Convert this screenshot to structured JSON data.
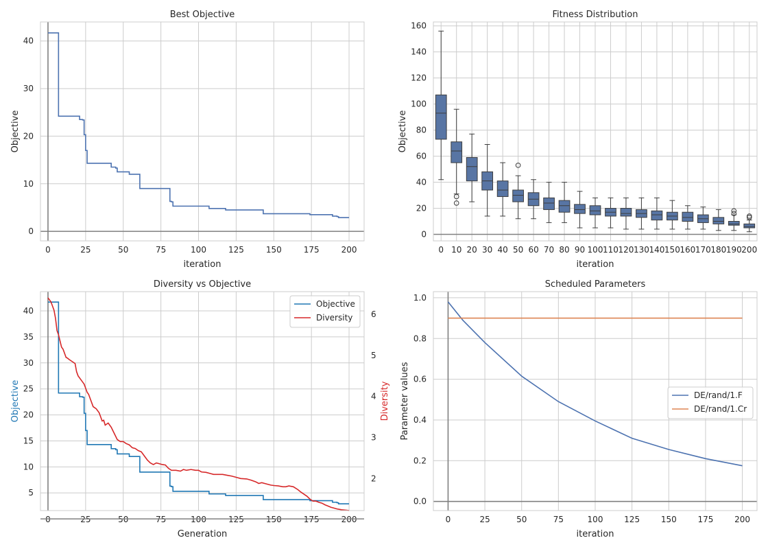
{
  "colors": {
    "blue": "#4c72b0",
    "box_fill": "#5875a4",
    "div_blue": "#1f77b4",
    "div_red": "#d62728",
    "orange": "#dd8452",
    "grid": "#cccccc",
    "zero": "#808080"
  },
  "chart_data": [
    {
      "id": "best",
      "type": "line",
      "title": "Best Objective",
      "xlabel": "iteration",
      "ylabel": "Objective",
      "xlim": [
        -5,
        210
      ],
      "ylim": [
        -2,
        44
      ],
      "xticks": [
        0,
        25,
        50,
        75,
        100,
        125,
        150,
        175,
        200
      ],
      "yticks": [
        0,
        10,
        20,
        30,
        40
      ],
      "grid": true,
      "series": [
        {
          "step": [
            [
              0,
              41.7
            ],
            [
              6,
              41.7
            ],
            [
              7,
              24.2
            ],
            [
              20,
              24.2
            ],
            [
              21,
              23.5
            ],
            [
              23,
              23.4
            ],
            [
              24,
              20.3
            ],
            [
              25,
              17.0
            ],
            [
              26,
              14.3
            ],
            [
              41,
              14.3
            ],
            [
              42,
              13.5
            ],
            [
              45,
              13.3
            ],
            [
              46,
              12.5
            ],
            [
              53,
              12.5
            ],
            [
              54,
              12.0
            ],
            [
              60,
              12.0
            ],
            [
              61,
              9.0
            ],
            [
              80,
              9.0
            ],
            [
              81,
              6.3
            ],
            [
              82,
              6.2
            ],
            [
              83,
              5.3
            ],
            [
              106,
              5.3
            ],
            [
              107,
              4.8
            ],
            [
              117,
              4.8
            ],
            [
              118,
              4.5
            ],
            [
              142,
              4.5
            ],
            [
              143,
              3.7
            ],
            [
              173,
              3.7
            ],
            [
              174,
              3.5
            ],
            [
              188,
              3.5
            ],
            [
              189,
              3.2
            ],
            [
              192,
              3.1
            ],
            [
              193,
              2.9
            ],
            [
              200,
              2.9
            ]
          ]
        }
      ]
    },
    {
      "id": "fitness",
      "type": "box",
      "title": "Fitness Distribution",
      "xlabel": "iteration",
      "ylabel": "Objective",
      "ylim": [
        -5,
        163
      ],
      "yticks": [
        0,
        20,
        40,
        60,
        80,
        100,
        120,
        140,
        160
      ],
      "categories": [
        "0",
        "10",
        "20",
        "30",
        "40",
        "50",
        "60",
        "70",
        "80",
        "90",
        "100",
        "110",
        "120",
        "130",
        "140",
        "150",
        "160",
        "170",
        "180",
        "190",
        "200"
      ],
      "boxes": [
        {
          "whislo": 42,
          "q1": 73,
          "med": 93,
          "q3": 107,
          "whishi": 156,
          "fliers": []
        },
        {
          "whislo": 31,
          "q1": 55,
          "med": 64,
          "q3": 71,
          "whishi": 96,
          "fliers": [
            29,
            24
          ]
        },
        {
          "whislo": 25,
          "q1": 41,
          "med": 52,
          "q3": 59,
          "whishi": 77,
          "fliers": []
        },
        {
          "whislo": 14,
          "q1": 34,
          "med": 41,
          "q3": 48,
          "whishi": 69,
          "fliers": []
        },
        {
          "whislo": 14,
          "q1": 29,
          "med": 34,
          "q3": 41,
          "whishi": 55,
          "fliers": []
        },
        {
          "whislo": 12,
          "q1": 25,
          "med": 30,
          "q3": 34,
          "whishi": 45,
          "fliers": [
            53
          ]
        },
        {
          "whislo": 12,
          "q1": 22,
          "med": 27,
          "q3": 32,
          "whishi": 42,
          "fliers": []
        },
        {
          "whislo": 9,
          "q1": 19,
          "med": 24,
          "q3": 28,
          "whishi": 40,
          "fliers": []
        },
        {
          "whislo": 9,
          "q1": 17,
          "med": 22,
          "q3": 26,
          "whishi": 40,
          "fliers": []
        },
        {
          "whislo": 5,
          "q1": 16,
          "med": 19,
          "q3": 23,
          "whishi": 33,
          "fliers": []
        },
        {
          "whislo": 5,
          "q1": 15,
          "med": 18,
          "q3": 22,
          "whishi": 28,
          "fliers": []
        },
        {
          "whislo": 5,
          "q1": 14,
          "med": 17,
          "q3": 20,
          "whishi": 28,
          "fliers": []
        },
        {
          "whislo": 4,
          "q1": 14,
          "med": 16,
          "q3": 20,
          "whishi": 28,
          "fliers": []
        },
        {
          "whislo": 4,
          "q1": 13,
          "med": 16,
          "q3": 19,
          "whishi": 28,
          "fliers": []
        },
        {
          "whislo": 4,
          "q1": 11,
          "med": 15,
          "q3": 18,
          "whishi": 28,
          "fliers": []
        },
        {
          "whislo": 4,
          "q1": 11,
          "med": 14,
          "q3": 17,
          "whishi": 26,
          "fliers": []
        },
        {
          "whislo": 4,
          "q1": 10,
          "med": 13,
          "q3": 17,
          "whishi": 22,
          "fliers": []
        },
        {
          "whislo": 4,
          "q1": 9,
          "med": 12,
          "q3": 15,
          "whishi": 21,
          "fliers": []
        },
        {
          "whislo": 3,
          "q1": 8,
          "med": 10,
          "q3": 13,
          "whishi": 19,
          "fliers": []
        },
        {
          "whislo": 3,
          "q1": 7,
          "med": 8,
          "q3": 10,
          "whishi": 15,
          "fliers": [
            16,
            18
          ]
        },
        {
          "whislo": 2,
          "q1": 5,
          "med": 6,
          "q3": 8,
          "whishi": 11,
          "fliers": [
            13,
            14
          ]
        }
      ]
    },
    {
      "id": "diversity",
      "type": "line",
      "title": "Diversity vs Objective",
      "xlabel": "Generation",
      "ylabel": "Objective",
      "ylabel2": "Diversity",
      "xlim": [
        -5,
        210
      ],
      "ylim": [
        1.6,
        43.7
      ],
      "ylim2": [
        1.22,
        6.55
      ],
      "xticks": [
        0,
        25,
        50,
        75,
        100,
        125,
        150,
        175,
        200
      ],
      "yticks": [
        5,
        10,
        15,
        20,
        25,
        30,
        35,
        40
      ],
      "yticks2": [
        2,
        3,
        4,
        5,
        6
      ],
      "grid": true,
      "legend": "top-right",
      "series": [
        {
          "name": "Objective",
          "axis": "left",
          "step": [
            [
              0,
              41.7
            ],
            [
              6,
              41.7
            ],
            [
              7,
              24.2
            ],
            [
              20,
              24.2
            ],
            [
              21,
              23.5
            ],
            [
              23,
              23.4
            ],
            [
              24,
              20.3
            ],
            [
              25,
              17.0
            ],
            [
              26,
              14.3
            ],
            [
              41,
              14.3
            ],
            [
              42,
              13.5
            ],
            [
              45,
              13.3
            ],
            [
              46,
              12.5
            ],
            [
              53,
              12.5
            ],
            [
              54,
              12.0
            ],
            [
              60,
              12.0
            ],
            [
              61,
              9.0
            ],
            [
              80,
              9.0
            ],
            [
              81,
              6.3
            ],
            [
              82,
              6.2
            ],
            [
              83,
              5.3
            ],
            [
              106,
              5.3
            ],
            [
              107,
              4.8
            ],
            [
              117,
              4.8
            ],
            [
              118,
              4.5
            ],
            [
              142,
              4.5
            ],
            [
              143,
              3.7
            ],
            [
              173,
              3.7
            ],
            [
              174,
              3.5
            ],
            [
              188,
              3.5
            ],
            [
              189,
              3.2
            ],
            [
              192,
              3.1
            ],
            [
              193,
              2.9
            ],
            [
              200,
              2.9
            ]
          ]
        },
        {
          "name": "Diversity",
          "axis": "right",
          "points": [
            [
              0,
              6.4
            ],
            [
              2,
              6.3
            ],
            [
              4,
              6.1
            ],
            [
              5,
              5.9
            ],
            [
              6,
              5.6
            ],
            [
              7,
              5.5
            ],
            [
              8,
              5.35
            ],
            [
              9,
              5.2
            ],
            [
              10,
              5.15
            ],
            [
              11,
              5.05
            ],
            [
              12,
              4.95
            ],
            [
              13,
              4.93
            ],
            [
              14,
              4.9
            ],
            [
              16,
              4.85
            ],
            [
              18,
              4.8
            ],
            [
              19,
              4.6
            ],
            [
              20,
              4.5
            ],
            [
              22,
              4.4
            ],
            [
              23,
              4.35
            ],
            [
              24,
              4.3
            ],
            [
              25,
              4.2
            ],
            [
              26,
              4.1
            ],
            [
              27,
              4.05
            ],
            [
              28,
              3.95
            ],
            [
              30,
              3.75
            ],
            [
              32,
              3.7
            ],
            [
              34,
              3.6
            ],
            [
              36,
              3.4
            ],
            [
              37,
              3.42
            ],
            [
              38,
              3.3
            ],
            [
              40,
              3.35
            ],
            [
              42,
              3.25
            ],
            [
              44,
              3.1
            ],
            [
              46,
              2.95
            ],
            [
              48,
              2.9
            ],
            [
              50,
              2.9
            ],
            [
              52,
              2.85
            ],
            [
              54,
              2.82
            ],
            [
              56,
              2.75
            ],
            [
              58,
              2.73
            ],
            [
              60,
              2.68
            ],
            [
              62,
              2.65
            ],
            [
              64,
              2.55
            ],
            [
              66,
              2.45
            ],
            [
              68,
              2.38
            ],
            [
              70,
              2.34
            ],
            [
              72,
              2.38
            ],
            [
              74,
              2.36
            ],
            [
              76,
              2.34
            ],
            [
              78,
              2.33
            ],
            [
              80,
              2.25
            ],
            [
              82,
              2.2
            ],
            [
              85,
              2.2
            ],
            [
              88,
              2.18
            ],
            [
              90,
              2.22
            ],
            [
              92,
              2.2
            ],
            [
              95,
              2.22
            ],
            [
              98,
              2.2
            ],
            [
              100,
              2.2
            ],
            [
              102,
              2.16
            ],
            [
              105,
              2.15
            ],
            [
              108,
              2.12
            ],
            [
              110,
              2.1
            ],
            [
              113,
              2.1
            ],
            [
              116,
              2.1
            ],
            [
              119,
              2.08
            ],
            [
              122,
              2.06
            ],
            [
              125,
              2.03
            ],
            [
              128,
              2.0
            ],
            [
              132,
              1.99
            ],
            [
              135,
              1.96
            ],
            [
              138,
              1.92
            ],
            [
              140,
              1.88
            ],
            [
              142,
              1.9
            ],
            [
              145,
              1.87
            ],
            [
              148,
              1.84
            ],
            [
              150,
              1.83
            ],
            [
              153,
              1.82
            ],
            [
              156,
              1.8
            ],
            [
              158,
              1.8
            ],
            [
              160,
              1.82
            ],
            [
              163,
              1.8
            ],
            [
              166,
              1.73
            ],
            [
              168,
              1.67
            ],
            [
              170,
              1.62
            ],
            [
              172,
              1.57
            ],
            [
              174,
              1.5
            ],
            [
              176,
              1.45
            ],
            [
              178,
              1.45
            ],
            [
              180,
              1.42
            ],
            [
              182,
              1.4
            ],
            [
              184,
              1.36
            ],
            [
              186,
              1.33
            ],
            [
              188,
              1.3
            ],
            [
              190,
              1.28
            ],
            [
              192,
              1.26
            ],
            [
              195,
              1.24
            ],
            [
              198,
              1.23
            ],
            [
              200,
              1.22
            ]
          ]
        }
      ]
    },
    {
      "id": "params",
      "type": "line",
      "title": "Scheduled Parameters",
      "xlabel": "iteration",
      "ylabel": "Parameter values",
      "xlim": [
        -10,
        210
      ],
      "ylim": [
        -0.045,
        1.03
      ],
      "xticks": [
        0,
        25,
        50,
        75,
        100,
        125,
        150,
        175,
        200
      ],
      "yticks": [
        0.0,
        0.2,
        0.4,
        0.6,
        0.8,
        1.0
      ],
      "grid": true,
      "legend": "center-right",
      "series": [
        {
          "name": "DE/rand/1.F",
          "points": [
            [
              0,
              0.98
            ],
            [
              10,
              0.89
            ],
            [
              25,
              0.78
            ],
            [
              50,
              0.615
            ],
            [
              75,
              0.49
            ],
            [
              100,
              0.395
            ],
            [
              125,
              0.31
            ],
            [
              150,
              0.255
            ],
            [
              175,
              0.21
            ],
            [
              200,
              0.175
            ]
          ]
        },
        {
          "name": "DE/rand/1.Cr",
          "points": [
            [
              0,
              0.9
            ],
            [
              200,
              0.9
            ]
          ]
        }
      ]
    }
  ]
}
